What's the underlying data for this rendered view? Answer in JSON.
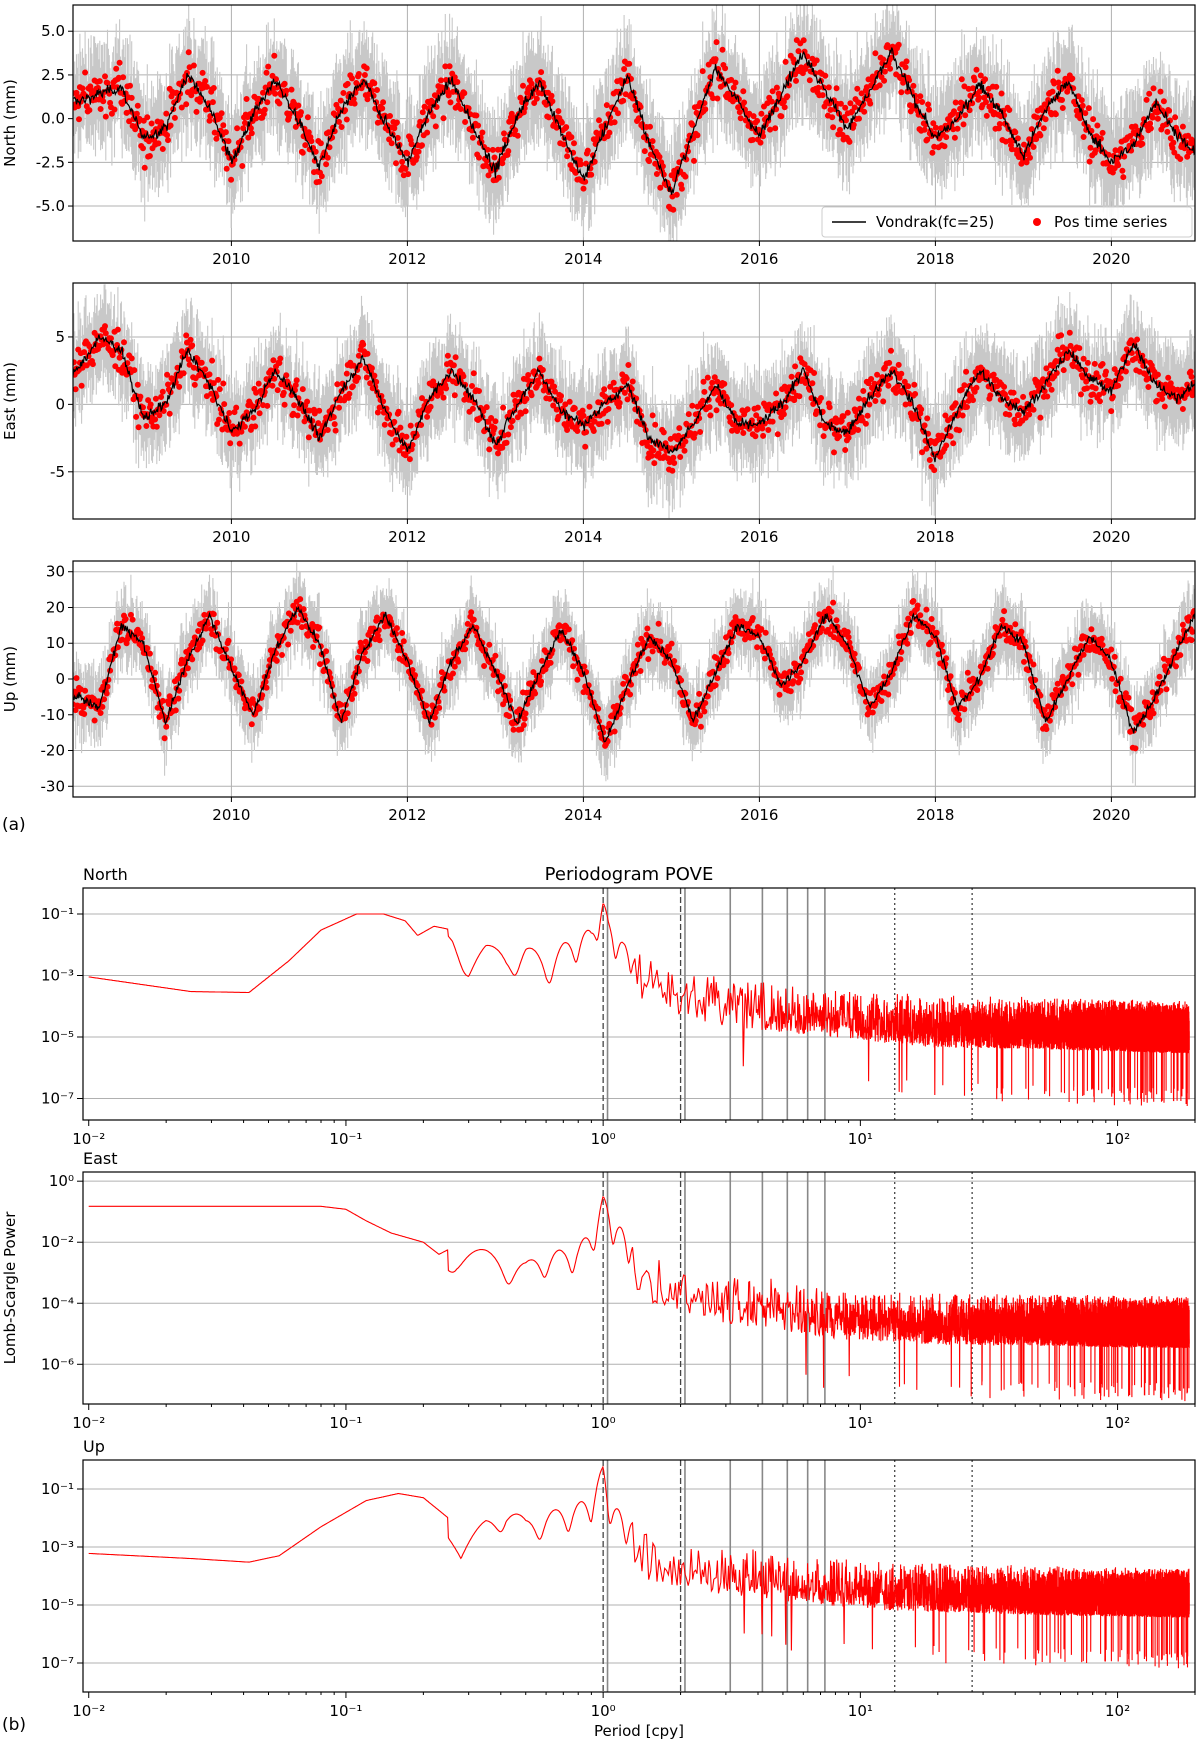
{
  "figure": {
    "panel_a_label": "(a)",
    "panel_b_label": "(b)",
    "colors": {
      "points": "#ff0000",
      "errorbars": "#c8c8c8",
      "smooth": "#000000",
      "grid": "#b0b0b0",
      "periodogram": "#ff0000"
    }
  },
  "chart_data": [
    {
      "type": "scatter",
      "panel": "a",
      "ylabel": "North (mm)",
      "xlim": [
        2008.2,
        2020.95
      ],
      "ylim": [
        -7,
        6.5
      ],
      "yticks": [
        "5.0",
        "2.5",
        "0.0",
        "-2.5",
        "-5.0"
      ],
      "ytick_values": [
        5.0,
        2.5,
        0.0,
        -2.5,
        -5.0
      ],
      "xticks": [
        "2010",
        "2012",
        "2014",
        "2016",
        "2018",
        "2020"
      ],
      "grid": true,
      "legend": {
        "placement": "lower-right",
        "entries": [
          "Vondrak(fc=25)",
          "Pos time series"
        ]
      },
      "series": [
        {
          "name": "Vondrak(fc=25)",
          "style": "line"
        },
        {
          "name": "Pos time series",
          "style": "points"
        }
      ],
      "x": [
        2008.25,
        2008.75,
        2009.0,
        2009.25,
        2009.5,
        2009.75,
        2010.0,
        2010.25,
        2010.5,
        2010.75,
        2011.0,
        2011.25,
        2011.5,
        2011.75,
        2012.0,
        2012.25,
        2012.5,
        2012.75,
        2013.0,
        2013.25,
        2013.5,
        2013.75,
        2014.0,
        2014.25,
        2014.5,
        2014.75,
        2015.0,
        2015.25,
        2015.5,
        2015.75,
        2016.0,
        2016.25,
        2016.5,
        2016.75,
        2017.0,
        2017.25,
        2017.5,
        2017.75,
        2018.0,
        2018.25,
        2018.5,
        2018.75,
        2019.0,
        2019.25,
        2019.5,
        2019.75,
        2020.0,
        2020.25,
        2020.5,
        2020.75,
        2020.95
      ],
      "y": [
        1.0,
        1.8,
        -1.2,
        -0.5,
        2.5,
        0.8,
        -2.5,
        0.3,
        2.2,
        0.0,
        -2.8,
        0.5,
        2.2,
        -0.2,
        -2.5,
        0.4,
        2.2,
        -0.5,
        -3.0,
        0.2,
        2.2,
        -0.8,
        -3.5,
        -0.5,
        2.5,
        -1.5,
        -4.2,
        -0.8,
        3.0,
        1.0,
        -1.0,
        1.5,
        3.8,
        1.5,
        -0.5,
        1.5,
        3.8,
        1.2,
        -1.2,
        0.0,
        2.0,
        0.3,
        -2.2,
        0.5,
        2.2,
        -0.8,
        -2.5,
        -1.5,
        1.0,
        -1.0,
        -2.0
      ]
    },
    {
      "type": "scatter",
      "panel": "a",
      "ylabel": "East (mm)",
      "xlim": [
        2008.2,
        2020.95
      ],
      "ylim": [
        -8.5,
        9
      ],
      "yticks": [
        "5",
        "0",
        "-5"
      ],
      "ytick_values": [
        5,
        0,
        -5
      ],
      "xticks": [
        "2010",
        "2012",
        "2014",
        "2016",
        "2018",
        "2020"
      ],
      "grid": true,
      "x": [
        2008.25,
        2008.5,
        2008.75,
        2009.0,
        2009.25,
        2009.5,
        2009.75,
        2010.0,
        2010.25,
        2010.5,
        2010.75,
        2011.0,
        2011.25,
        2011.5,
        2011.75,
        2012.0,
        2012.25,
        2012.5,
        2012.75,
        2013.0,
        2013.25,
        2013.5,
        2013.75,
        2014.0,
        2014.25,
        2014.5,
        2014.75,
        2015.0,
        2015.25,
        2015.5,
        2015.75,
        2016.0,
        2016.25,
        2016.5,
        2016.75,
        2017.0,
        2017.25,
        2017.5,
        2017.75,
        2018.0,
        2018.25,
        2018.5,
        2018.75,
        2019.0,
        2019.25,
        2019.5,
        2019.75,
        2020.0,
        2020.25,
        2020.5,
        2020.75,
        2020.95
      ],
      "y": [
        2.5,
        5.0,
        4.0,
        -1.0,
        0.0,
        4.0,
        1.5,
        -2.0,
        -0.5,
        2.5,
        0.5,
        -2.5,
        1.0,
        3.5,
        -0.5,
        -3.5,
        0.5,
        2.5,
        0.5,
        -3.0,
        0.0,
        2.5,
        -0.5,
        -1.5,
        0.0,
        1.5,
        -2.5,
        -3.5,
        -1.5,
        1.5,
        -1.5,
        -1.5,
        0.0,
        2.5,
        -1.5,
        -2.0,
        0.5,
        2.5,
        0.0,
        -4.0,
        -0.5,
        2.5,
        0.5,
        -0.5,
        1.5,
        4.0,
        2.0,
        1.0,
        4.5,
        1.5,
        0.5,
        1.5
      ]
    },
    {
      "type": "scatter",
      "panel": "a",
      "ylabel": "Up (mm)",
      "xlim": [
        2008.2,
        2020.95
      ],
      "ylim": [
        -33,
        33
      ],
      "yticks": [
        "30",
        "20",
        "10",
        "0",
        "-10",
        "-20",
        "-30"
      ],
      "ytick_values": [
        30,
        20,
        10,
        0,
        -10,
        -20,
        -30
      ],
      "xticks": [
        "2010",
        "2012",
        "2014",
        "2016",
        "2018",
        "2020"
      ],
      "grid": true,
      "x": [
        2008.25,
        2008.5,
        2008.75,
        2009.0,
        2009.25,
        2009.5,
        2009.75,
        2010.0,
        2010.25,
        2010.5,
        2010.75,
        2011.0,
        2011.25,
        2011.5,
        2011.75,
        2012.0,
        2012.25,
        2012.5,
        2012.75,
        2013.0,
        2013.25,
        2013.5,
        2013.75,
        2014.0,
        2014.25,
        2014.5,
        2014.75,
        2015.0,
        2015.25,
        2015.5,
        2015.75,
        2016.0,
        2016.25,
        2016.5,
        2016.75,
        2017.0,
        2017.25,
        2017.5,
        2017.75,
        2018.0,
        2018.25,
        2018.5,
        2018.75,
        2019.0,
        2019.25,
        2019.5,
        2019.75,
        2020.0,
        2020.25,
        2020.5,
        2020.75,
        2020.95
      ],
      "y": [
        -5.0,
        -8.0,
        15.0,
        10.0,
        -12.0,
        5.0,
        18.0,
        3.0,
        -10.0,
        8.0,
        20.0,
        10.0,
        -12.0,
        8.0,
        18.0,
        5.0,
        -12.0,
        5.0,
        15.0,
        2.0,
        -12.0,
        2.0,
        14.0,
        2.0,
        -18.0,
        -2.0,
        12.0,
        5.0,
        -12.0,
        2.0,
        15.0,
        12.0,
        -2.0,
        5.0,
        18.0,
        10.0,
        -8.0,
        2.0,
        18.0,
        12.0,
        -8.0,
        0.0,
        15.0,
        10.0,
        -12.0,
        0.0,
        12.0,
        5.0,
        -15.0,
        -5.0,
        8.0,
        18.0
      ]
    },
    {
      "type": "line",
      "panel": "b",
      "title": "Periodogram POVE",
      "component_label": "North",
      "x_scale": "log",
      "y_scale": "log",
      "xlim": [
        0.0095,
        200
      ],
      "ylim": [
        2e-08,
        0.7
      ],
      "xtick_labels": [
        "10⁻²",
        "10⁻¹",
        "10⁰",
        "10¹",
        "10²"
      ],
      "xtick_values": [
        0.01,
        0.1,
        1,
        10,
        100
      ],
      "ytick_labels": [
        "10⁻¹",
        "10⁻³",
        "10⁻⁵",
        "10⁻⁷"
      ],
      "ytick_values": [
        0.1,
        0.001,
        1e-05,
        1e-07
      ],
      "vlines": {
        "dashed": [
          1.0,
          2.0
        ],
        "solid": [
          1.04,
          2.08,
          3.12,
          4.16,
          5.2,
          6.24,
          7.28
        ],
        "dotted": [
          13.6,
          27.2
        ]
      },
      "envelope": {
        "x": [
          0.01,
          0.025,
          0.042,
          0.06,
          0.08,
          0.11,
          0.14,
          0.17,
          0.19,
          0.22,
          0.26,
          0.3,
          0.35,
          0.42,
          0.5,
          0.6,
          0.7,
          0.8,
          0.9,
          1.0,
          1.05,
          1.2,
          1.5,
          2.0,
          3.0,
          5.0,
          8.0,
          12.0,
          20.0,
          50.0,
          100.0,
          190.0
        ],
        "y": [
          0.0009,
          0.0003,
          0.00028,
          0.003,
          0.03,
          0.1,
          0.1,
          0.06,
          0.02,
          0.04,
          0.03,
          0.005,
          0.01,
          0.005,
          0.01,
          0.003,
          0.01,
          0.02,
          0.03,
          0.3,
          0.05,
          0.01,
          0.005,
          0.002,
          0.001,
          0.0006,
          0.0004,
          0.0003,
          0.0002,
          0.00018,
          0.00015,
          0.00013
        ]
      }
    },
    {
      "type": "line",
      "panel": "b",
      "component_label": "East",
      "ylabel": "Lomb-Scargle Power",
      "x_scale": "log",
      "y_scale": "log",
      "xlim": [
        0.0095,
        200
      ],
      "ylim": [
        5e-08,
        2
      ],
      "xtick_labels": [
        "10⁻²",
        "10⁻¹",
        "10⁰",
        "10¹",
        "10²"
      ],
      "xtick_values": [
        0.01,
        0.1,
        1,
        10,
        100
      ],
      "ytick_labels": [
        "10⁰",
        "10⁻²",
        "10⁻⁴",
        "10⁻⁶"
      ],
      "ytick_values": [
        1,
        0.01,
        0.0001,
        1e-06
      ],
      "vlines": {
        "dashed": [
          1.0,
          2.0
        ],
        "solid": [
          1.04,
          2.08,
          3.12,
          4.16,
          5.2,
          6.24,
          7.28
        ],
        "dotted": [
          13.6,
          27.2
        ]
      },
      "envelope": {
        "x": [
          0.01,
          0.05,
          0.08,
          0.1,
          0.12,
          0.15,
          0.2,
          0.23,
          0.27,
          0.35,
          0.42,
          0.5,
          0.6,
          0.7,
          0.8,
          0.9,
          1.0,
          1.1,
          1.3,
          1.6,
          2.0,
          3.0,
          5.0,
          8.0,
          12.0,
          20.0,
          50.0,
          100.0,
          190.0
        ],
        "y": [
          0.15,
          0.15,
          0.15,
          0.12,
          0.05,
          0.02,
          0.01,
          0.004,
          0.008,
          0.005,
          0.003,
          0.002,
          0.005,
          0.005,
          0.008,
          0.02,
          0.3,
          0.05,
          0.01,
          0.004,
          0.002,
          0.001,
          0.0005,
          0.0003,
          0.00025,
          0.0002,
          0.00018,
          0.00016,
          0.00015
        ]
      }
    },
    {
      "type": "line",
      "panel": "b",
      "component_label": "Up",
      "xlabel": "Period [cpy]",
      "x_scale": "log",
      "y_scale": "log",
      "xlim": [
        0.0095,
        200
      ],
      "ylim": [
        1e-08,
        1
      ],
      "xtick_labels": [
        "10⁻²",
        "10⁻¹",
        "10⁰",
        "10¹",
        "10²"
      ],
      "xtick_values": [
        0.01,
        0.1,
        1,
        10,
        100
      ],
      "ytick_labels": [
        "10⁻¹",
        "10⁻³",
        "10⁻⁵",
        "10⁻⁷"
      ],
      "ytick_values": [
        0.1,
        0.001,
        1e-05,
        1e-07
      ],
      "vlines": {
        "dashed": [
          1.0,
          2.0
        ],
        "solid": [
          1.04,
          2.08,
          3.12,
          4.16,
          5.2,
          6.24,
          7.28
        ],
        "dotted": [
          13.6,
          27.2
        ]
      },
      "envelope": {
        "x": [
          0.01,
          0.025,
          0.042,
          0.055,
          0.08,
          0.12,
          0.16,
          0.2,
          0.25,
          0.28,
          0.35,
          0.42,
          0.5,
          0.6,
          0.7,
          0.8,
          0.9,
          1.0,
          1.05,
          1.2,
          1.5,
          2.0,
          3.0,
          5.0,
          8.0,
          12.0,
          20.0,
          50.0,
          100.0,
          190.0
        ],
        "y": [
          0.0006,
          0.0004,
          0.0003,
          0.0005,
          0.005,
          0.04,
          0.07,
          0.05,
          0.01,
          0.0006,
          0.01,
          0.03,
          0.008,
          0.015,
          0.02,
          0.03,
          0.05,
          0.6,
          0.05,
          0.01,
          0.003,
          0.0015,
          0.001,
          0.0006,
          0.0004,
          0.0003,
          0.00025,
          0.0002,
          0.00018,
          0.00016
        ]
      }
    }
  ]
}
